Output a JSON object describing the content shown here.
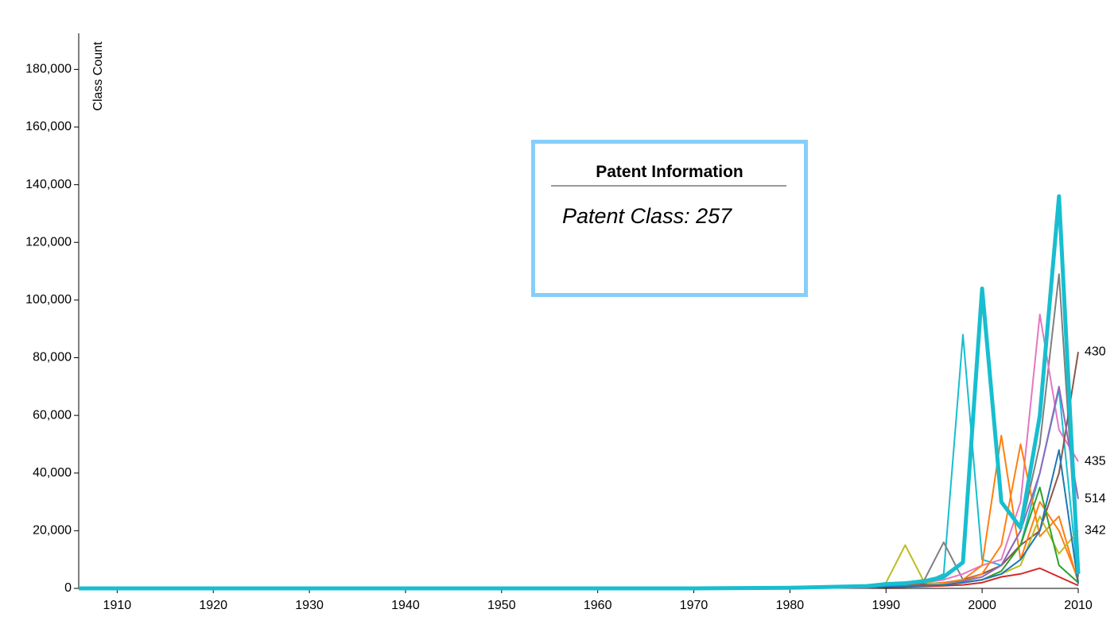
{
  "chart_data": {
    "type": "line",
    "y_label": "Class Count",
    "x": [
      1906,
      1970,
      1980,
      1988,
      1990,
      1992,
      1994,
      1996,
      1998,
      2000,
      2002,
      2004,
      2006,
      2008,
      2010
    ],
    "xlim": [
      1906,
      2010
    ],
    "xticks": [
      1910,
      1920,
      1930,
      1940,
      1950,
      1960,
      1970,
      1980,
      1990,
      2000,
      2010
    ],
    "ylim": [
      0,
      192500
    ],
    "yticks": [
      0,
      {
        "value": 20000,
        "label": "20,000"
      },
      {
        "value": 40000,
        "label": "40,000"
      },
      {
        "value": 60000,
        "label": "60,000"
      },
      {
        "value": 80000,
        "label": "80,000"
      },
      {
        "value": 100000,
        "label": "100,000"
      },
      {
        "value": 120000,
        "label": "120,000"
      },
      {
        "value": 140000,
        "label": "140,000"
      },
      {
        "value": 160000,
        "label": "160,000"
      },
      {
        "value": 180000,
        "label": "180,000"
      }
    ],
    "series": [
      {
        "color": "#17becf",
        "values": [
          0,
          0,
          100,
          500,
          1000,
          1500,
          2000,
          5000,
          88000,
          10000,
          8000,
          15000,
          40000,
          69000,
          2000
        ]
      },
      {
        "color": "#7f7f7f",
        "values": [
          0,
          0,
          300,
          800,
          1500,
          2000,
          3000,
          16000,
          3000,
          5000,
          8000,
          20000,
          50000,
          109000,
          4000
        ]
      },
      {
        "name": "435",
        "color": "#e377c2",
        "values": [
          0,
          0,
          200,
          600,
          1000,
          1500,
          2000,
          3000,
          5000,
          8000,
          10000,
          30000,
          95000,
          55000,
          44000
        ]
      },
      {
        "name": "430",
        "color": "#8c564b",
        "values": [
          0,
          0,
          100,
          400,
          800,
          1000,
          1500,
          2000,
          3000,
          5000,
          8000,
          15000,
          20000,
          40000,
          82000
        ]
      },
      {
        "color": "#ff7f0e",
        "values": [
          0,
          0,
          100,
          300,
          500,
          800,
          1000,
          2000,
          3000,
          8000,
          53000,
          10000,
          30000,
          20000,
          3000
        ]
      },
      {
        "color": "#ff7f0e",
        "values": [
          0,
          0,
          100,
          300,
          500,
          700,
          900,
          1500,
          2500,
          5000,
          15000,
          50000,
          18000,
          25000,
          2000
        ]
      },
      {
        "name": "514",
        "color": "#9467bd",
        "values": [
          0,
          0,
          100,
          300,
          500,
          700,
          900,
          1500,
          2500,
          4000,
          8000,
          20000,
          40000,
          70000,
          31000
        ]
      },
      {
        "name": "342",
        "color": "#bcbd22",
        "values": [
          0,
          0,
          100,
          500,
          2000,
          15000,
          2000,
          1500,
          2000,
          3000,
          5000,
          8000,
          25000,
          12000,
          20000
        ]
      },
      {
        "color": "#2ca02c",
        "values": [
          0,
          0,
          100,
          300,
          500,
          700,
          900,
          1200,
          2000,
          3000,
          6000,
          15000,
          35000,
          8000,
          2000
        ]
      },
      {
        "color": "#d62728",
        "values": [
          0,
          0,
          100,
          200,
          400,
          500,
          700,
          900,
          1200,
          2000,
          4000,
          5000,
          7000,
          4000,
          1000
        ]
      },
      {
        "color": "#1f77b4",
        "values": [
          0,
          0,
          100,
          300,
          500,
          700,
          900,
          1200,
          2000,
          3000,
          5000,
          10000,
          20000,
          48000,
          1500
        ]
      },
      {
        "color": "#17becf",
        "width": 5,
        "values": [
          0,
          0,
          200,
          800,
          1500,
          1800,
          2500,
          4000,
          9000,
          104000,
          30000,
          21000,
          60000,
          136000,
          5000
        ]
      }
    ]
  },
  "tooltip": {
    "title": "Patent Information",
    "text": "Patent Class: 257"
  }
}
